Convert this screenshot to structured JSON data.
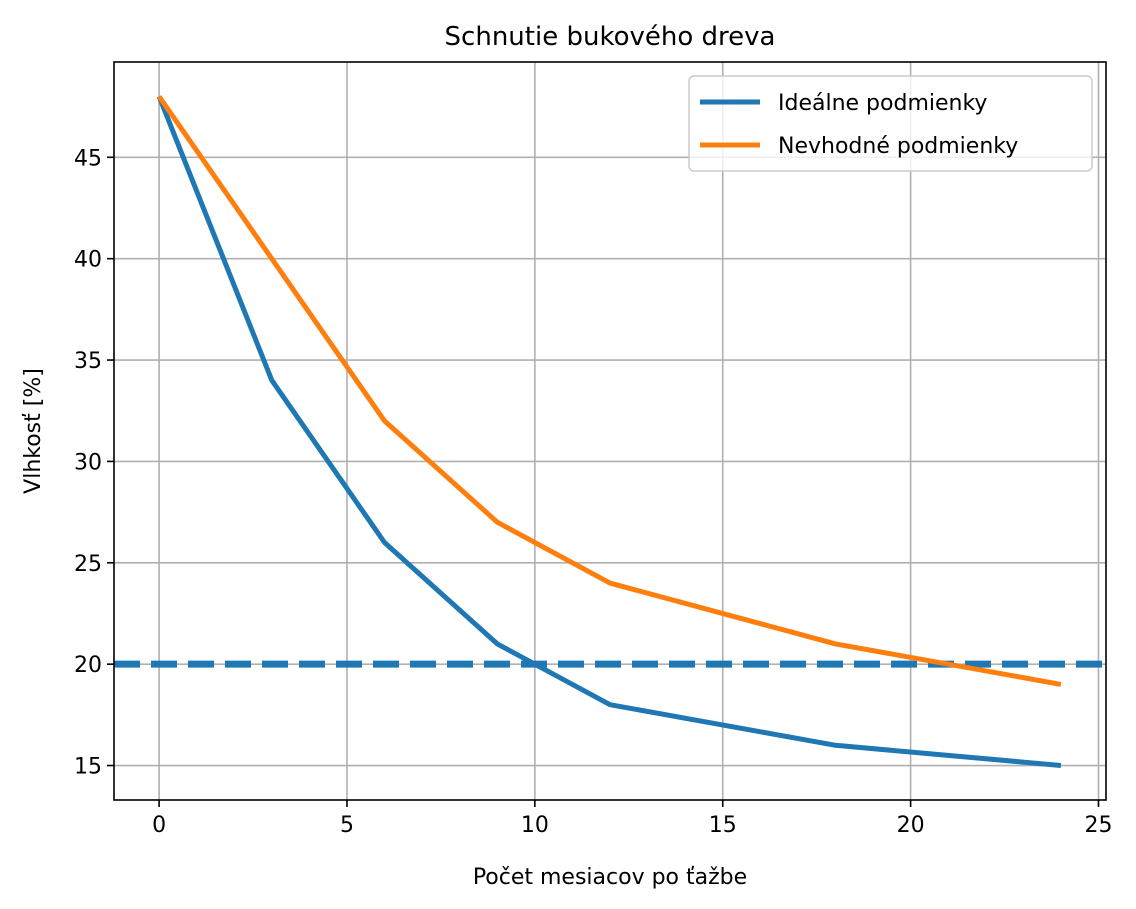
{
  "chart_data": {
    "type": "line",
    "title": "Schnutie bukového dreva",
    "xlabel": "Počet mesiacov po ťažbe",
    "ylabel": "Vlhkosť [%]",
    "xlim": [
      -1.2,
      25.2
    ],
    "ylim": [
      13.3,
      49.7
    ],
    "xticks": [
      0,
      5,
      10,
      15,
      20,
      25
    ],
    "yticks": [
      15,
      20,
      25,
      30,
      35,
      40,
      45
    ],
    "grid": true,
    "legend_position": "top-right",
    "series": [
      {
        "name": "Ideálne podmienky",
        "color": "#1f77b4",
        "x": [
          0,
          3,
          6,
          9,
          12,
          18,
          24
        ],
        "y": [
          48,
          34,
          26,
          21,
          18,
          16,
          15
        ]
      },
      {
        "name": "Nevhodné podmienky",
        "color": "#ff7f0e",
        "x": [
          0,
          3,
          6,
          9,
          12,
          18,
          24
        ],
        "y": [
          48,
          40,
          32,
          27,
          24,
          21,
          19
        ]
      }
    ],
    "reference_lines": [
      {
        "y": 20,
        "color": "#1f77b4",
        "style": "dashed"
      }
    ]
  }
}
